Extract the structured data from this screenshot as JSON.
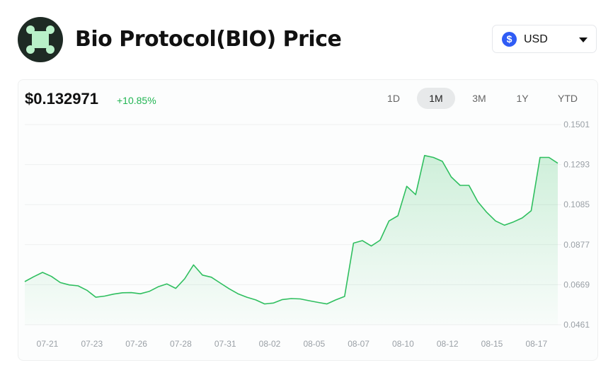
{
  "header": {
    "title": "Bio Protocol(BIO) Price",
    "logo_icon": "bio-protocol-logo"
  },
  "currency": {
    "selected": "USD",
    "icon": "dollar-icon",
    "icon_color": "#2f5cf5"
  },
  "summary": {
    "price": "$0.132971",
    "change": "+10.85%",
    "change_color": "#22b553"
  },
  "tabs": [
    {
      "label": "1D"
    },
    {
      "label": "1M",
      "active": true
    },
    {
      "label": "3M"
    },
    {
      "label": "1Y"
    },
    {
      "label": "YTD"
    }
  ],
  "chart_data": {
    "type": "area",
    "line_color": "#2fbf5f",
    "grid": true,
    "y_ticks": [
      "0.1501",
      "0.1293",
      "0.1085",
      "0.0877",
      "0.0669",
      "0.0461"
    ],
    "ylim": [
      0.0461,
      0.1501
    ],
    "x_ticks": [
      "07-21",
      "07-23",
      "07-26",
      "07-28",
      "07-31",
      "08-02",
      "08-05",
      "08-07",
      "08-10",
      "08-12",
      "08-15",
      "08-17"
    ],
    "values": [
      0.0685,
      0.071,
      0.0733,
      0.0712,
      0.068,
      0.0668,
      0.0663,
      0.064,
      0.0604,
      0.061,
      0.062,
      0.0627,
      0.0628,
      0.0622,
      0.0634,
      0.0658,
      0.0673,
      0.065,
      0.07,
      0.0772,
      0.0719,
      0.0708,
      0.0678,
      0.0648,
      0.0622,
      0.0604,
      0.059,
      0.0569,
      0.0574,
      0.0592,
      0.0597,
      0.0595,
      0.0586,
      0.0577,
      0.0569,
      0.059,
      0.0608,
      0.0885,
      0.0898,
      0.087,
      0.09,
      0.1,
      0.1027,
      0.118,
      0.1137,
      0.134,
      0.133,
      0.131,
      0.1229,
      0.1185,
      0.1185,
      0.11,
      0.1045,
      0.1,
      0.0978,
      0.0995,
      0.1016,
      0.1053,
      0.133,
      0.133,
      0.13
    ]
  }
}
